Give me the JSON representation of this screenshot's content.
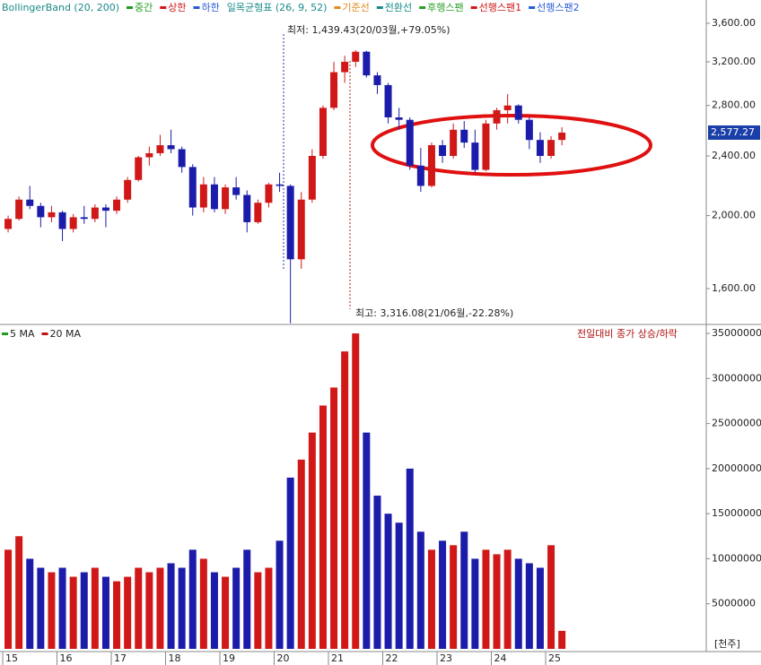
{
  "chart_data": {
    "type": "candlestick",
    "legend": [
      {
        "label": "BollingerBand (20, 200)",
        "color": "#333333"
      },
      {
        "label": "중간",
        "color": "#1f9d1f"
      },
      {
        "label": "상한",
        "color": "#d01818"
      },
      {
        "label": "하한",
        "color": "#2a5bd7"
      },
      {
        "label": "일목균형표 (26, 9, 52)",
        "color": "#333333"
      },
      {
        "label": "기준선",
        "color": "#e08a1e"
      },
      {
        "label": "전환선",
        "color": "#1a8a8a"
      },
      {
        "label": "후행스팬",
        "color": "#2aa02a"
      },
      {
        "label": "선행스팬1",
        "color": "#d01818"
      },
      {
        "label": "선행스팬2",
        "color": "#2a5bd7"
      }
    ],
    "annotations": [
      "최저: 1,439.43(20/03월,+79.05%)",
      "최고: 3,316.08(21/06월,-22.28%)"
    ],
    "categories": [
      "15",
      null,
      null,
      null,
      null,
      "16",
      null,
      null,
      null,
      null,
      "17",
      null,
      null,
      null,
      null,
      "18",
      null,
      null,
      null,
      null,
      "19",
      null,
      null,
      null,
      null,
      "20",
      null,
      null,
      null,
      null,
      "21",
      null,
      null,
      null,
      null,
      "22",
      null,
      null,
      null,
      null,
      "23",
      null,
      null,
      null,
      null,
      "24",
      null,
      null,
      null,
      null,
      "25",
      null
    ],
    "open": [
      1920,
      1980,
      2100,
      2060,
      1990,
      2020,
      1920,
      1990,
      1980,
      2050,
      2030,
      2100,
      2230,
      2390,
      2420,
      2480,
      2450,
      2320,
      2050,
      2200,
      2040,
      2180,
      2130,
      1960,
      2080,
      2200,
      2190,
      1750,
      2100,
      2400,
      2780,
      3100,
      3200,
      3300,
      3070,
      2980,
      2700,
      2680,
      2330,
      2190,
      2480,
      2400,
      2600,
      2500,
      2300,
      2650,
      2760,
      2800,
      2680,
      2520,
      2400,
      2520
    ],
    "high": [
      2000,
      2120,
      2190,
      2080,
      2060,
      2030,
      2010,
      2060,
      2070,
      2070,
      2120,
      2250,
      2400,
      2470,
      2560,
      2600,
      2470,
      2340,
      2250,
      2250,
      2200,
      2250,
      2160,
      2100,
      2210,
      2280,
      2200,
      2150,
      2450,
      2800,
      3200,
      3260,
      3316.08,
      3310,
      3100,
      3000,
      2780,
      2700,
      2460,
      2500,
      2520,
      2650,
      2670,
      2600,
      2680,
      2780,
      2900,
      2810,
      2700,
      2580,
      2550,
      2620
    ],
    "low": [
      1900,
      1970,
      2040,
      1930,
      1960,
      1850,
      1900,
      1950,
      1960,
      1930,
      2010,
      2080,
      2220,
      2330,
      2400,
      2420,
      2280,
      2000,
      2020,
      2020,
      2010,
      2100,
      1900,
      1950,
      2050,
      2150,
      1439.43,
      1700,
      2080,
      2380,
      2760,
      3000,
      3150,
      3050,
      2900,
      2650,
      2600,
      2300,
      2150,
      2180,
      2350,
      2380,
      2460,
      2280,
      2290,
      2600,
      2650,
      2650,
      2450,
      2350,
      2380,
      2480
    ],
    "close": [
      1980,
      2100,
      2060,
      1990,
      2020,
      1920,
      1990,
      1980,
      2050,
      2030,
      2100,
      2230,
      2390,
      2420,
      2480,
      2450,
      2320,
      2050,
      2200,
      2040,
      2180,
      2130,
      1960,
      2080,
      2200,
      2190,
      1750,
      2100,
      2400,
      2780,
      3100,
      3200,
      3300,
      3070,
      2980,
      2700,
      2680,
      2330,
      2190,
      2480,
      2400,
      2600,
      2500,
      2300,
      2650,
      2760,
      2800,
      2680,
      2520,
      2400,
      2520,
      2577.27
    ],
    "up_color": "#d01818",
    "down_color": "#1c1caa",
    "ylim": [
      1442,
      3865
    ],
    "log_scale": true,
    "yticks": [
      {
        "value": 1600,
        "label": "1,600.00"
      },
      {
        "value": 2000,
        "label": "2,000.00"
      },
      {
        "value": 2400,
        "label": "2,400.00"
      },
      {
        "value": 2800,
        "label": "2,800.00"
      },
      {
        "value": 3200,
        "label": "3,200.00"
      },
      {
        "value": 3600,
        "label": "3,600.00"
      }
    ],
    "last_price": {
      "value": 2577.27,
      "label": "2,577.27"
    },
    "volume": {
      "legend": [
        {
          "label": "5 MA",
          "color": "#1f9d1f"
        },
        {
          "label": "20 MA",
          "color": "#c01010"
        }
      ],
      "note": "전일대비 종가 상승/하락",
      "unit": "[천주]",
      "values": [
        11000000,
        12500000,
        10000000,
        9000000,
        8500000,
        9000000,
        8000000,
        8500000,
        9000000,
        8000000,
        7500000,
        8000000,
        9000000,
        8500000,
        9000000,
        9500000,
        9000000,
        11000000,
        10000000,
        8500000,
        8000000,
        9000000,
        11000000,
        8500000,
        9000000,
        12000000,
        19000000,
        21000000,
        24000000,
        27000000,
        29000000,
        33000000,
        35000000,
        24000000,
        17000000,
        15000000,
        14000000,
        20000000,
        13000000,
        11000000,
        12000000,
        11500000,
        13000000,
        10000000,
        11000000,
        10500000,
        11000000,
        10000000,
        9500000,
        9000000,
        11500000,
        2000000
      ],
      "ylim": [
        0,
        35700000
      ],
      "yticks": [
        5000000,
        10000000,
        15000000,
        20000000,
        25000000,
        30000000,
        35000000
      ]
    }
  }
}
